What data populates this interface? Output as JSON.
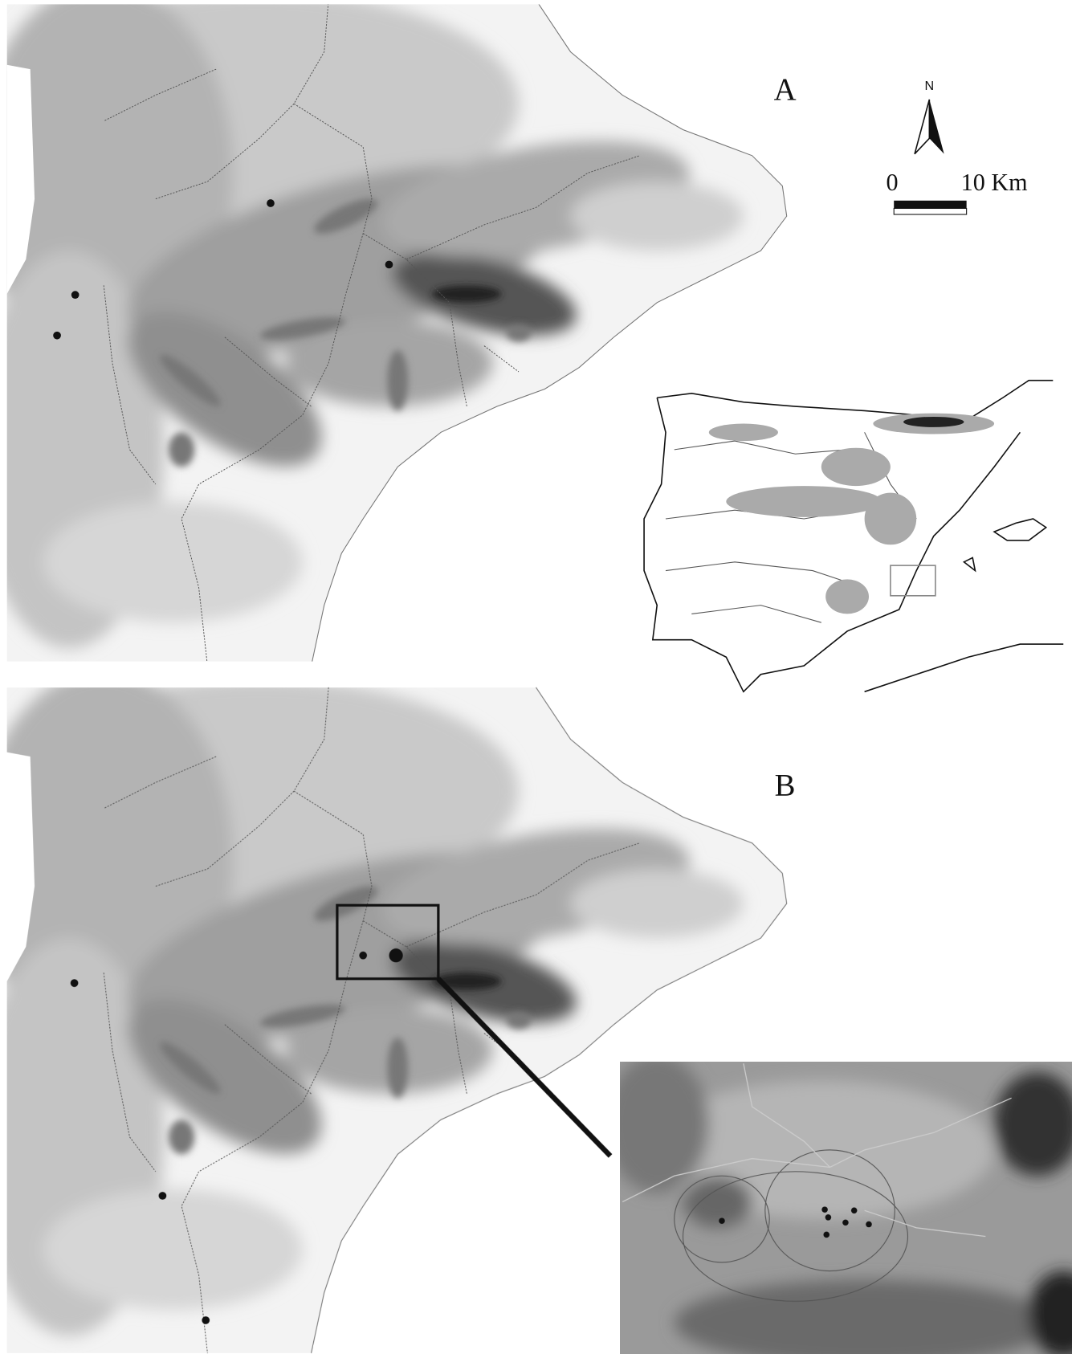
{
  "panels": [
    {
      "label": "A"
    },
    {
      "label": "B"
    }
  ],
  "north_arrow": {
    "label": "N"
  },
  "scale_bar": {
    "start": "0",
    "end": "10 Km"
  }
}
